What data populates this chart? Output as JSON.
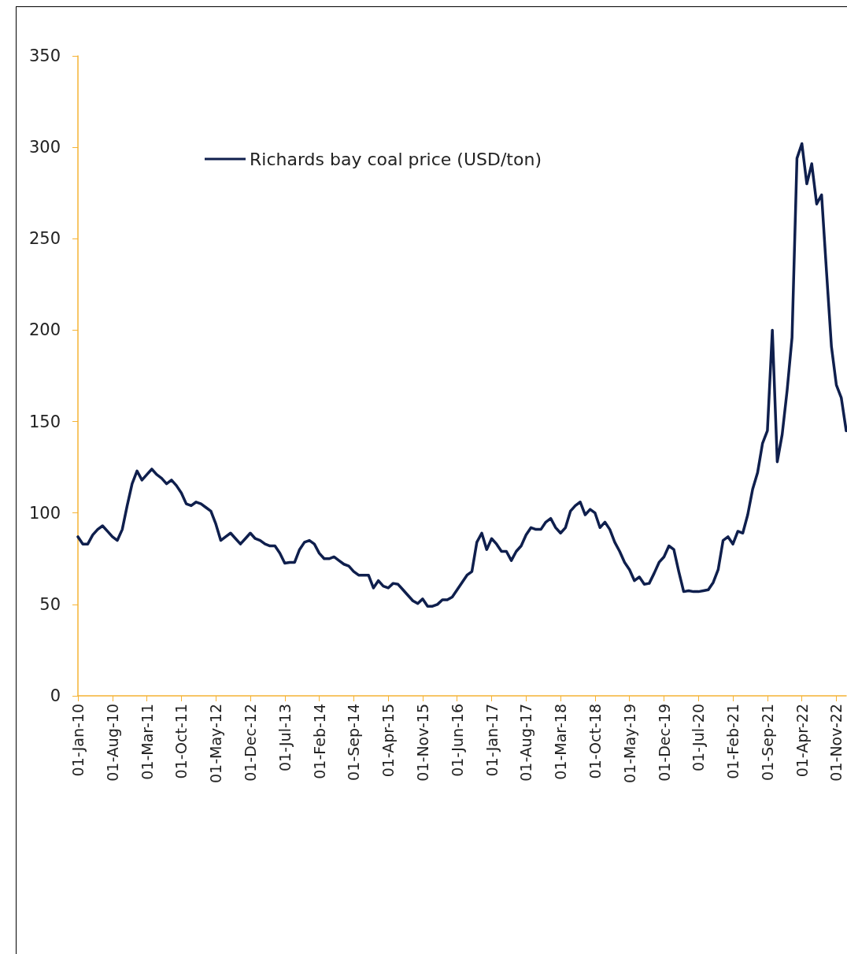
{
  "chart_data": {
    "type": "line",
    "categories": [
      "01-Jan-10",
      null,
      null,
      null,
      null,
      null,
      null,
      "01-Aug-10",
      null,
      null,
      null,
      null,
      null,
      null,
      "01-Mar-11",
      null,
      null,
      null,
      null,
      null,
      null,
      "01-Oct-11",
      null,
      null,
      null,
      null,
      null,
      null,
      "01-May-12",
      null,
      null,
      null,
      null,
      null,
      null,
      "01-Dec-12",
      null,
      null,
      null,
      null,
      null,
      null,
      "01-Jul-13",
      null,
      null,
      null,
      null,
      null,
      null,
      "01-Feb-14",
      null,
      null,
      null,
      null,
      null,
      null,
      "01-Sep-14",
      null,
      null,
      null,
      null,
      null,
      null,
      "01-Apr-15",
      null,
      null,
      null,
      null,
      null,
      null,
      "01-Nov-15",
      null,
      null,
      null,
      null,
      null,
      null,
      "01-Jun-16",
      null,
      null,
      null,
      null,
      null,
      null,
      "01-Jan-17",
      null,
      null,
      null,
      null,
      null,
      null,
      "01-Aug-17",
      null,
      null,
      null,
      null,
      null,
      null,
      "01-Mar-18",
      null,
      null,
      null,
      null,
      null,
      null,
      "01-Oct-18",
      null,
      null,
      null,
      null,
      null,
      null,
      "01-May-19",
      null,
      null,
      null,
      null,
      null,
      null,
      "01-Dec-19",
      null,
      null,
      null,
      null,
      null,
      null,
      "01-Jul-20",
      null,
      null,
      null,
      null,
      null,
      null,
      "01-Feb-21",
      null,
      null,
      null,
      null,
      null,
      null,
      "01-Sep-21",
      null,
      null,
      null,
      null,
      null,
      null,
      "01-Apr-22",
      null,
      null,
      null,
      null,
      null,
      null,
      "01-Nov-22",
      null,
      null
    ],
    "series": [
      {
        "name": "Richards bay coal price (USD/ton)",
        "color": "#0f1f4d",
        "values": [
          87,
          83,
          83,
          88,
          91,
          93,
          90,
          87,
          85,
          91,
          104,
          116,
          123,
          118,
          121,
          124,
          121,
          119,
          116,
          118,
          115,
          111,
          105,
          104,
          106,
          105,
          103,
          101,
          94,
          85,
          87,
          89,
          86,
          83,
          86,
          89,
          86,
          85,
          83,
          82,
          82,
          78,
          72.5,
          73,
          73,
          80,
          84,
          85,
          83,
          78,
          75,
          75,
          76,
          74,
          72,
          71,
          68,
          66,
          66,
          66,
          59,
          63,
          60,
          59,
          61.5,
          61,
          58,
          55,
          52,
          50.5,
          53,
          49,
          49,
          50,
          52.5,
          52.5,
          54,
          58,
          62,
          66,
          68,
          84,
          89,
          80,
          86,
          83,
          79,
          79,
          74,
          79,
          82,
          88,
          92,
          91,
          91,
          95,
          97,
          92,
          89,
          92,
          101,
          104,
          106,
          99,
          102,
          100,
          92,
          95,
          91,
          84,
          79,
          73,
          69,
          63,
          65,
          61,
          61.5,
          67,
          73,
          76,
          82,
          80,
          68,
          57,
          57.5,
          57,
          57,
          57.5,
          58,
          62,
          69,
          85,
          87,
          83,
          90,
          89,
          99,
          113,
          122,
          138,
          145,
          200,
          128,
          143,
          167,
          196,
          294,
          302,
          280,
          291,
          269,
          274,
          232,
          191,
          170,
          163,
          145
        ]
      }
    ],
    "ylim": [
      0,
      350
    ],
    "yticks": [
      0,
      50,
      100,
      150,
      200,
      250,
      300,
      350
    ],
    "grid": false,
    "legend": "top left",
    "marker": "none",
    "line_style": "solid"
  }
}
